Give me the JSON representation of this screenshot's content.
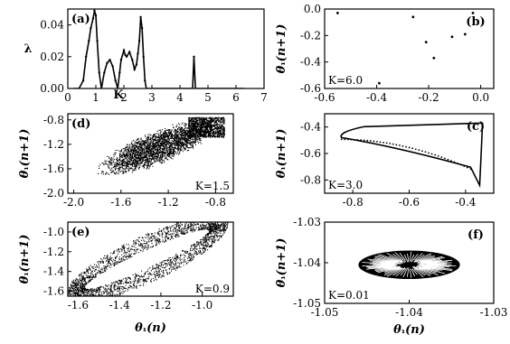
{
  "chart_data": [
    {
      "type": "line",
      "panel": "(a)",
      "xlabel": "K",
      "ylabel": "λ",
      "xlim": [
        0,
        7
      ],
      "ylim": [
        0,
        0.05
      ],
      "xticks": [
        "0",
        "1",
        "2",
        "3",
        "4",
        "5",
        "6",
        "7"
      ],
      "yticks": [
        "0.00",
        "0.02",
        "0.04"
      ],
      "series": [
        {
          "x": [
            0.2,
            0.4,
            0.55,
            0.65,
            0.75,
            0.82,
            0.9,
            0.95,
            1.0,
            1.05,
            1.12,
            1.2,
            1.3,
            1.4,
            1.5,
            1.6,
            1.7,
            1.78,
            1.85,
            1.9,
            2.0,
            2.05,
            2.1,
            2.2,
            2.3,
            2.38,
            2.45,
            2.5,
            2.55,
            2.6,
            2.65,
            2.7,
            2.75,
            2.8,
            2.9,
            3.0,
            3.2,
            4.0,
            4.45,
            4.5,
            4.55,
            5.0,
            6.0,
            6.3
          ],
          "y": [
            0.0,
            0.0,
            0.005,
            0.02,
            0.03,
            0.038,
            0.044,
            0.049,
            0.046,
            0.03,
            0.01,
            0.0,
            0.01,
            0.016,
            0.018,
            0.014,
            0.005,
            0.0,
            0.01,
            0.018,
            0.024,
            0.021,
            0.02,
            0.023,
            0.018,
            0.012,
            0.015,
            0.022,
            0.03,
            0.045,
            0.038,
            0.02,
            0.005,
            0.0,
            0.0,
            0.0,
            0.0,
            0.0,
            0.0,
            0.02,
            0.0,
            0.0,
            0.0,
            0.0
          ]
        }
      ]
    },
    {
      "type": "scatter",
      "panel": "(b)",
      "xlabel": "",
      "ylabel": "θ₁(n+1)",
      "xlim": [
        -0.6,
        0.05
      ],
      "ylim": [
        -0.6,
        0.0
      ],
      "xticks": [
        "-0.6",
        "-0.4",
        "-0.2",
        "0.0"
      ],
      "yticks": [
        "0.0",
        "-0.2",
        "-0.4",
        "-0.6"
      ],
      "annotation": "K=6.0",
      "points": [
        [
          -0.55,
          -0.03
        ],
        [
          -0.39,
          -0.56
        ],
        [
          -0.26,
          -0.06
        ],
        [
          -0.21,
          -0.25
        ],
        [
          -0.18,
          -0.37
        ],
        [
          -0.11,
          -0.21
        ],
        [
          -0.06,
          -0.19
        ],
        [
          -0.03,
          -0.03
        ]
      ]
    },
    {
      "type": "scatter",
      "panel": "(c)",
      "xlabel": "",
      "ylabel": "θ₁(n+1)",
      "xlim": [
        -0.9,
        -0.3
      ],
      "ylim": [
        -0.9,
        -0.3
      ],
      "xticks": [
        "-0.8",
        "-0.6",
        "-0.4"
      ],
      "yticks": [
        "-0.4",
        "-0.6",
        "-0.8"
      ],
      "annotation": "K=3.0",
      "attractor": {
        "tip": [
          -0.84,
          -0.48
        ],
        "top_right": [
          -0.34,
          -0.37
        ],
        "bottom_right": [
          -0.35,
          -0.84
        ]
      }
    },
    {
      "type": "scatter",
      "panel": "(d)",
      "xlabel": "",
      "ylabel": "θ₁(n+1)",
      "xlim": [
        -2.05,
        -0.65
      ],
      "ylim": [
        -2.0,
        -0.7
      ],
      "xticks": [
        "-2.0",
        "-1.6",
        "-1.2",
        "-0.8"
      ],
      "yticks": [
        "-0.8",
        "-1.2",
        "-1.6",
        "-2.0"
      ],
      "annotation": "K=1.5",
      "cloud": {
        "center": [
          -1.3,
          -1.25
        ],
        "rx": 0.56,
        "ry": 0.28,
        "tilt_deg": 22,
        "dense_corner": [
          -0.85,
          -0.85
        ]
      }
    },
    {
      "type": "scatter",
      "panel": "(e)",
      "xlabel": "θ₁(n)",
      "ylabel": "θ₁(n+1)",
      "xlim": [
        -1.65,
        -0.85
      ],
      "ylim": [
        -1.65,
        -0.9
      ],
      "xticks": [
        "-1.6",
        "-1.4",
        "-1.2",
        "-1.0"
      ],
      "yticks": [
        "-1.0",
        "-1.2",
        "-1.4",
        "-1.6"
      ],
      "annotation": "K=0.9",
      "ring": {
        "center": [
          -1.27,
          -1.27
        ],
        "rx": 0.38,
        "ry": 0.16,
        "tilt_deg": 25,
        "thickness": 0.05
      }
    },
    {
      "type": "scatter",
      "panel": "(f)",
      "xlabel": "θ₁(n)",
      "ylabel": "θ₁(n+1)",
      "xlim": [
        -1.05,
        -1.03
      ],
      "ylim": [
        -1.05,
        -1.03
      ],
      "xticks": [
        "-1.05",
        "-1.04",
        "-1.03"
      ],
      "yticks": [
        "-1.03",
        "-1.04",
        "-1.05"
      ],
      "annotation": "K=0.01",
      "ellipse": {
        "center": [
          -1.04,
          -1.0405
        ],
        "rx": 0.006,
        "ry": 0.0035
      }
    }
  ]
}
